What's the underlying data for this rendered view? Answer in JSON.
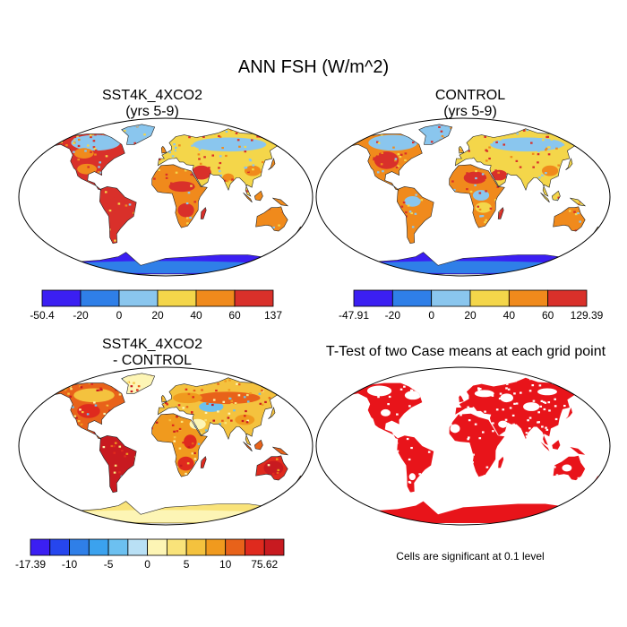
{
  "title": "ANN FSH (W/m^2)",
  "panels": [
    {
      "title_line1": "SST4K_4XCO2",
      "title_line2": "(yrs 5-9)"
    },
    {
      "title_line1": "CONTROL",
      "title_line2": "(yrs 5-9)"
    },
    {
      "title_line1": "SST4K_4XCO2",
      "title_line2": "- CONTROL"
    },
    {
      "title_line1": "T-Test of two Case means at each grid point",
      "title_line2": ""
    }
  ],
  "significance_note": "Cells are significant at 0.1 level",
  "chart_data": [
    {
      "type": "heatmap",
      "title": "SST4K_4XCO2 (yrs 5-9)",
      "units": "W/m^2",
      "colorbar": {
        "tick_labels": [
          "-50.4",
          "-20",
          "0",
          "20",
          "40",
          "60",
          "137"
        ],
        "bins": [
          -50.4,
          -20,
          0,
          20,
          40,
          60,
          137
        ],
        "colors": [
          "#3b1ff2",
          "#2f7fe8",
          "#8ac6ee",
          "#f4d64a",
          "#f08a1c",
          "#d9302a"
        ]
      }
    },
    {
      "type": "heatmap",
      "title": "CONTROL (yrs 5-9)",
      "units": "W/m^2",
      "colorbar": {
        "tick_labels": [
          "-47.91",
          "-20",
          "0",
          "20",
          "40",
          "60",
          "129.39"
        ],
        "bins": [
          -47.91,
          -20,
          0,
          20,
          40,
          60,
          129.39
        ],
        "colors": [
          "#3b1ff2",
          "#2f7fe8",
          "#8ac6ee",
          "#f4d64a",
          "#f08a1c",
          "#d9302a"
        ]
      }
    },
    {
      "type": "heatmap",
      "title": "SST4K_4XCO2 - CONTROL",
      "units": "W/m^2",
      "colorbar": {
        "tick_labels": [
          "-17.39",
          "",
          "-10",
          "",
          "-5",
          "",
          "0",
          "",
          "5",
          "",
          "10",
          "",
          "75.62"
        ],
        "colors": [
          "#3b1ff2",
          "#2646ee",
          "#2f7fe8",
          "#3ba2ee",
          "#6cc0f0",
          "#b9e0f5",
          "#fdf5b5",
          "#f9e37a",
          "#f4c23e",
          "#f09a1e",
          "#e8621a",
          "#df2a1e",
          "#c81a20"
        ]
      }
    },
    {
      "type": "heatmap",
      "title": "T-Test of two Case means at each grid point",
      "significant_color": "#e8141a",
      "significance_level": 0.1
    }
  ]
}
